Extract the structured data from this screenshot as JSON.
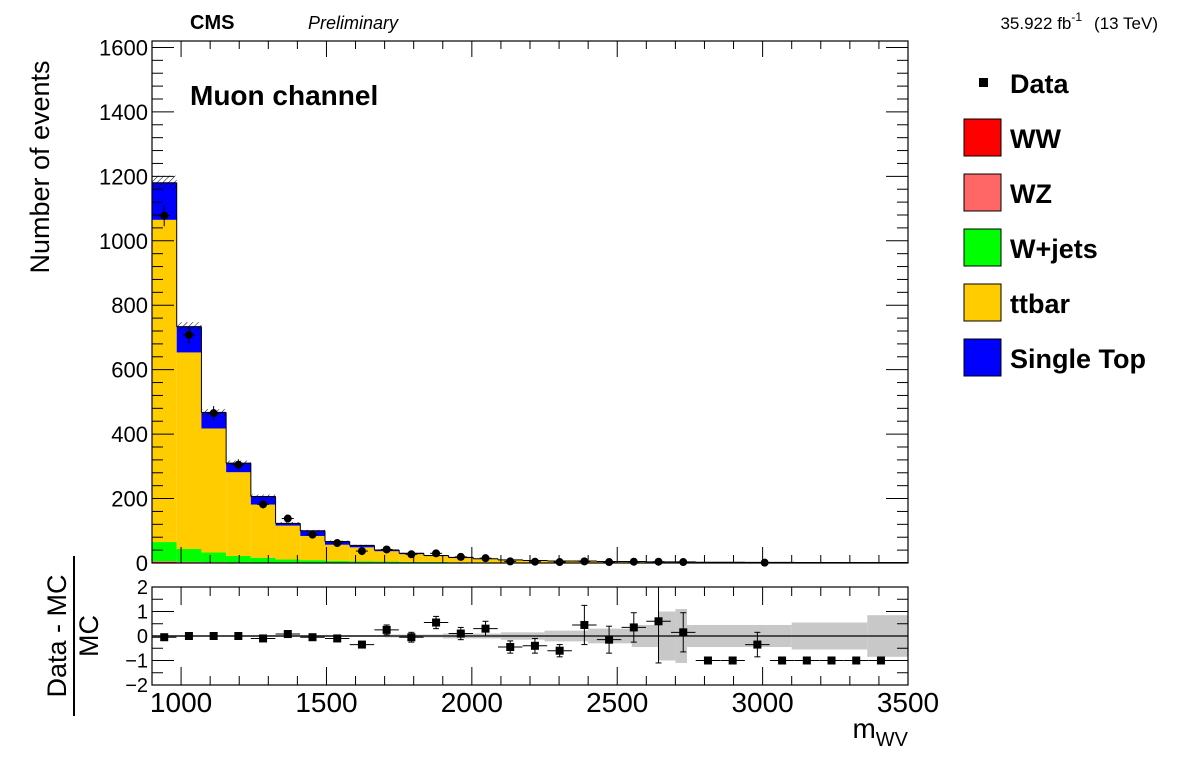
{
  "header": {
    "experiment": "CMS",
    "status": "Preliminary",
    "lumi_value": "35.922 fb",
    "lumi_exp": "-1",
    "energy": "(13 TeV)"
  },
  "chart_data": [
    {
      "type": "bar",
      "subtype": "stacked-histogram",
      "annotation": "Muon channel",
      "ylabel": "Number of events",
      "xlim": [
        900,
        3500
      ],
      "ylim": [
        0,
        1620
      ],
      "yticks": [
        0,
        200,
        400,
        600,
        800,
        1000,
        1200,
        1400,
        1600
      ],
      "x_edges": [
        900,
        985,
        1070,
        1155,
        1240,
        1325,
        1410,
        1495,
        1580,
        1665,
        1750,
        1835,
        1920,
        2005,
        2090,
        2175,
        2260,
        2345,
        2430,
        2515,
        2600,
        2685,
        2770,
        2855,
        2940,
        3025,
        3110,
        3195,
        3280,
        3365,
        3500
      ],
      "legend": {
        "position": "right",
        "entries": [
          {
            "label": "Data",
            "kind": "marker",
            "color": "#000000"
          },
          {
            "label": "WW",
            "kind": "box",
            "color": "#ff0000"
          },
          {
            "label": "WZ",
            "kind": "box",
            "color": "#ff6666"
          },
          {
            "label": "W+jets",
            "kind": "box",
            "color": "#00ff00"
          },
          {
            "label": "ttbar",
            "kind": "box",
            "color": "#ffcc00"
          },
          {
            "label": "Single Top",
            "kind": "box",
            "color": "#0000ff"
          }
        ]
      },
      "series": [
        {
          "name": "WW",
          "color": "#ff0000",
          "values": [
            3,
            2,
            1.5,
            1,
            0.8,
            0.6,
            0.5,
            0.4,
            0.3,
            0.3,
            0.2,
            0.2,
            0.2,
            0.1,
            0.1,
            0.1,
            0.1,
            0.1,
            0.1,
            0.1,
            0.1,
            0.05,
            0.05,
            0.05,
            0.05,
            0.05,
            0.05,
            0.05,
            0.05,
            0.05
          ]
        },
        {
          "name": "WZ",
          "color": "#ff6666",
          "values": [
            2,
            1.5,
            1,
            0.8,
            0.6,
            0.5,
            0.4,
            0.3,
            0.3,
            0.2,
            0.2,
            0.2,
            0.1,
            0.1,
            0.1,
            0.1,
            0.1,
            0.1,
            0.05,
            0.05,
            0.05,
            0.05,
            0.05,
            0.05,
            0.05,
            0.05,
            0.05,
            0.05,
            0.05,
            0.05
          ]
        },
        {
          "name": "W+jets",
          "color": "#00ff00",
          "values": [
            60,
            40,
            30,
            20,
            15,
            10,
            8,
            6,
            5,
            4,
            3,
            3,
            2,
            2,
            1.5,
            1.5,
            1,
            1,
            1,
            1,
            0.8,
            0.8,
            0.6,
            0.6,
            0.5,
            0.5,
            0.4,
            0.4,
            0.3,
            0.3
          ]
        },
        {
          "name": "ttbar",
          "color": "#ffcc00",
          "values": [
            1000,
            610,
            385,
            260,
            165,
            105,
            75,
            50,
            43,
            32,
            24,
            18,
            13,
            10,
            7,
            5,
            4,
            4,
            3,
            3,
            2,
            2,
            1.5,
            1.5,
            1,
            1,
            1,
            1,
            1,
            1
          ]
        },
        {
          "name": "Single Top",
          "color": "#0000ff",
          "values": [
            115,
            80,
            50,
            28,
            25,
            7,
            16,
            10,
            6,
            4,
            3,
            2,
            2,
            1,
            1,
            1,
            1,
            1,
            0.5,
            0.5,
            0.5,
            0.5,
            0.3,
            0.3,
            0.3,
            0.3,
            0.2,
            0.2,
            0.2,
            0.2
          ]
        }
      ],
      "mc_uncertainty": [
        22,
        14,
        10,
        8,
        6,
        4,
        3,
        3,
        2,
        2,
        1.5,
        1.5,
        1,
        1,
        1,
        1,
        1,
        0.5,
        0.5,
        0.5,
        0.5,
        0.5,
        0.5,
        0.5,
        0.5,
        0.5,
        0.5,
        0.5,
        0.5,
        0.5
      ],
      "data_points": [
        {
          "x": 942,
          "y": 1078,
          "err": 33
        },
        {
          "x": 1027,
          "y": 708,
          "err": 27
        },
        {
          "x": 1112,
          "y": 465,
          "err": 22
        },
        {
          "x": 1197,
          "y": 305,
          "err": 17
        },
        {
          "x": 1282,
          "y": 182,
          "err": 13
        },
        {
          "x": 1367,
          "y": 138,
          "err": 12
        },
        {
          "x": 1452,
          "y": 88,
          "err": 9
        },
        {
          "x": 1537,
          "y": 62,
          "err": 8
        },
        {
          "x": 1622,
          "y": 37,
          "err": 6
        },
        {
          "x": 1707,
          "y": 42,
          "err": 6
        },
        {
          "x": 1792,
          "y": 27,
          "err": 5
        },
        {
          "x": 1877,
          "y": 30,
          "err": 5
        },
        {
          "x": 1962,
          "y": 19,
          "err": 4
        },
        {
          "x": 2047,
          "y": 15,
          "err": 4
        },
        {
          "x": 2132,
          "y": 5,
          "err": 2
        },
        {
          "x": 2217,
          "y": 4,
          "err": 2
        },
        {
          "x": 2302,
          "y": 3,
          "err": 2
        },
        {
          "x": 2387,
          "y": 5,
          "err": 2
        },
        {
          "x": 2472,
          "y": 3,
          "err": 2
        },
        {
          "x": 2557,
          "y": 4,
          "err": 2
        },
        {
          "x": 2642,
          "y": 4,
          "err": 2
        },
        {
          "x": 2727,
          "y": 3,
          "err": 2
        },
        {
          "x": 3007,
          "y": 1,
          "err": 1
        }
      ]
    },
    {
      "type": "scatter",
      "subtype": "ratio",
      "ylabel_num": "Data - MC",
      "ylabel_den": "MC",
      "xlabel": "m",
      "xlabel_sub": "WV",
      "xlim": [
        900,
        3500
      ],
      "ylim": [
        -2,
        2
      ],
      "xticks": [
        1000,
        1500,
        2000,
        2500,
        3000,
        3500
      ],
      "yticks": [
        -2,
        -1,
        0,
        1,
        2
      ],
      "reference_line": 0,
      "uncertainty_band": [
        {
          "x1": 900,
          "x2": 1700,
          "half": 0.04
        },
        {
          "x1": 1700,
          "x2": 1900,
          "half": 0.06
        },
        {
          "x1": 1900,
          "x2": 2100,
          "half": 0.1
        },
        {
          "x1": 2100,
          "x2": 2250,
          "half": 0.15
        },
        {
          "x1": 2250,
          "x2": 2400,
          "half": 0.22
        },
        {
          "x1": 2400,
          "x2": 2550,
          "half": 0.3
        },
        {
          "x1": 2550,
          "x2": 2640,
          "half": 0.45
        },
        {
          "x1": 2640,
          "x2": 2700,
          "half": 1.0
        },
        {
          "x1": 2700,
          "x2": 2740,
          "half": 1.1
        },
        {
          "x1": 2740,
          "x2": 3100,
          "half": 0.45
        },
        {
          "x1": 3100,
          "x2": 3360,
          "half": 0.55
        },
        {
          "x1": 3360,
          "x2": 3500,
          "half": 0.85
        }
      ],
      "points": [
        {
          "x": 942,
          "y": -0.05,
          "ex": 42,
          "ey": 0.03
        },
        {
          "x": 1027,
          "y": 0.0,
          "ex": 42,
          "ey": 0.04
        },
        {
          "x": 1112,
          "y": 0.0,
          "ex": 42,
          "ey": 0.05
        },
        {
          "x": 1197,
          "y": 0.0,
          "ex": 42,
          "ey": 0.06
        },
        {
          "x": 1282,
          "y": -0.1,
          "ex": 42,
          "ey": 0.07
        },
        {
          "x": 1367,
          "y": 0.08,
          "ex": 42,
          "ey": 0.1
        },
        {
          "x": 1452,
          "y": -0.05,
          "ex": 42,
          "ey": 0.1
        },
        {
          "x": 1537,
          "y": -0.1,
          "ex": 42,
          "ey": 0.13
        },
        {
          "x": 1622,
          "y": -0.35,
          "ex": 42,
          "ey": 0.12
        },
        {
          "x": 1707,
          "y": 0.25,
          "ex": 42,
          "ey": 0.2
        },
        {
          "x": 1792,
          "y": -0.05,
          "ex": 42,
          "ey": 0.2
        },
        {
          "x": 1877,
          "y": 0.55,
          "ex": 42,
          "ey": 0.25
        },
        {
          "x": 1962,
          "y": 0.1,
          "ex": 42,
          "ey": 0.25
        },
        {
          "x": 2047,
          "y": 0.3,
          "ex": 42,
          "ey": 0.3
        },
        {
          "x": 2132,
          "y": -0.45,
          "ex": 42,
          "ey": 0.25
        },
        {
          "x": 2217,
          "y": -0.4,
          "ex": 42,
          "ey": 0.3
        },
        {
          "x": 2302,
          "y": -0.6,
          "ex": 42,
          "ey": 0.25
        },
        {
          "x": 2387,
          "y": 0.45,
          "ex": 42,
          "ey": 0.8
        },
        {
          "x": 2472,
          "y": -0.15,
          "ex": 42,
          "ey": 0.55
        },
        {
          "x": 2557,
          "y": 0.35,
          "ex": 42,
          "ey": 0.6
        },
        {
          "x": 2642,
          "y": 0.6,
          "ex": 42,
          "ey": 1.7
        },
        {
          "x": 2727,
          "y": 0.15,
          "ex": 42,
          "ey": 0.8
        },
        {
          "x": 2812,
          "y": -1.0,
          "ex": 42,
          "ey": 0
        },
        {
          "x": 2897,
          "y": -1.0,
          "ex": 42,
          "ey": 0
        },
        {
          "x": 2982,
          "y": -0.35,
          "ex": 42,
          "ey": 0.5
        },
        {
          "x": 3067,
          "y": -1.0,
          "ex": 42,
          "ey": 0
        },
        {
          "x": 3152,
          "y": -1.0,
          "ex": 42,
          "ey": 0
        },
        {
          "x": 3237,
          "y": -1.0,
          "ex": 42,
          "ey": 0
        },
        {
          "x": 3322,
          "y": -1.0,
          "ex": 42,
          "ey": 0
        },
        {
          "x": 3407,
          "y": -1.0,
          "ex": 42,
          "ey": 0
        }
      ]
    }
  ]
}
